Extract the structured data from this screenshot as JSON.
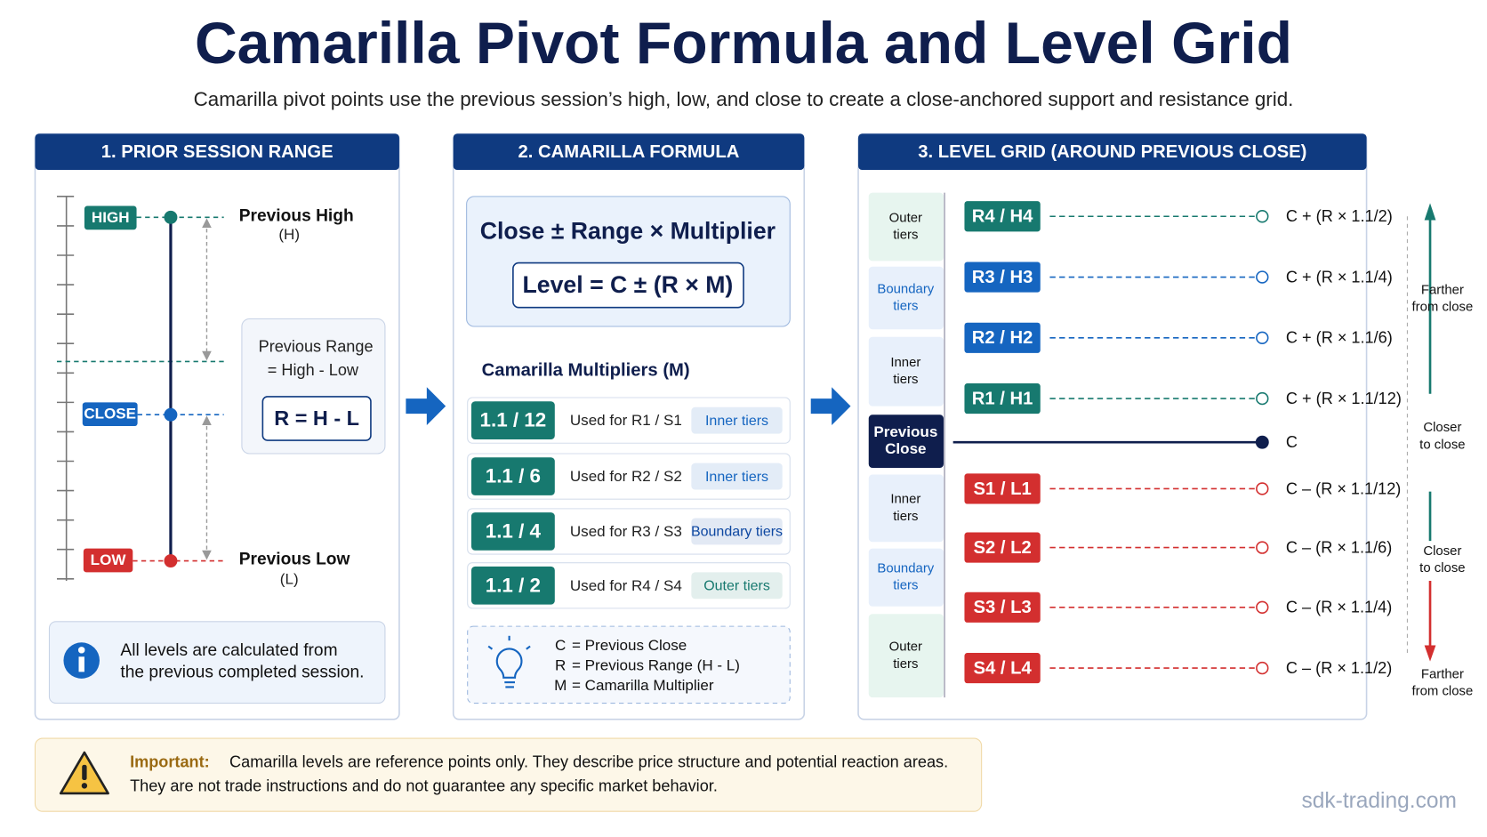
{
  "header": {
    "title": "Camarilla Pivot Formula and Level Grid",
    "subtitle": "Camarilla pivot points use the previous session’s high, low, and close to create a close-anchored support and resistance grid."
  },
  "panel1": {
    "title": "1. PRIOR SESSION RANGE",
    "high_tag": "HIGH",
    "close_tag": "CLOSE",
    "low_tag": "LOW",
    "high_label": "Previous High",
    "high_symbol": "(H)",
    "low_label": "Previous Low",
    "low_symbol": "(L)",
    "range_lines": [
      "Previous Range",
      "= High - Low"
    ],
    "range_formula": "R = H - L",
    "info": [
      "All levels are calculated from",
      "the previous completed session."
    ]
  },
  "panel2": {
    "title": "2. CAMARILLA FORMULA",
    "formula": "Close ± Range × Multiplier",
    "level_formula": "Level = C ± (R × M)",
    "multipliers_title": "Camarilla Multipliers (M)",
    "multipliers": [
      {
        "ratio": "1.1 / 12",
        "use": "Used for R1 / S1",
        "tier": "Inner tiers",
        "tier_color": "#1565c0"
      },
      {
        "ratio": "1.1 / 6",
        "use": "Used for R2 / S2",
        "tier": "Inner tiers",
        "tier_color": "#1565c0"
      },
      {
        "ratio": "1.1 / 4",
        "use": "Used for R3 / S3",
        "tier": "Boundary tiers",
        "tier_color": "#0d47a1"
      },
      {
        "ratio": "1.1 / 2",
        "use": "Used for R4 / S4",
        "tier": "Outer tiers",
        "tier_color": "#17796f"
      }
    ],
    "legend": [
      {
        "symbol": "C",
        "text": "= Previous Close"
      },
      {
        "symbol": "R",
        "text": "= Previous Range (H - L)"
      },
      {
        "symbol": "M",
        "text": "= Camarilla Multiplier"
      }
    ]
  },
  "panel3": {
    "title": "3. LEVEL GRID (AROUND PREVIOUS CLOSE)",
    "tiers": [
      {
        "lines": [
          "Outer",
          "tiers"
        ]
      },
      {
        "lines": [
          "Boundary",
          "tiers"
        ]
      },
      {
        "lines": [
          "Inner",
          "tiers"
        ]
      },
      {
        "lines": [
          "Previous",
          "Close"
        ]
      },
      {
        "lines": [
          "Inner",
          "tiers"
        ]
      },
      {
        "lines": [
          "Boundary",
          "tiers"
        ]
      },
      {
        "lines": [
          "Outer",
          "tiers"
        ]
      }
    ],
    "levels": [
      {
        "label": "R4 / H4",
        "formula": "C + (R × 1.1/2)",
        "color": "#17796f"
      },
      {
        "label": "R3 / H3",
        "formula": "C + (R × 1.1/4)",
        "color": "#1565c0"
      },
      {
        "label": "R2 / H2",
        "formula": "C + (R × 1.1/6)",
        "color": "#1565c0"
      },
      {
        "label": "R1 / H1",
        "formula": "C + (R × 1.1/12)",
        "color": "#17796f"
      },
      {
        "label": "S1 / L1",
        "formula": "C – (R × 1.1/12)",
        "color": "#d32f2f"
      },
      {
        "label": "S2 / L2",
        "formula": "C – (R × 1.1/6)",
        "color": "#d32f2f"
      },
      {
        "label": "S3 / L3",
        "formula": "C – (R × 1.1/4)",
        "color": "#d32f2f"
      },
      {
        "label": "S4 / L4",
        "formula": "C – (R × 1.1/2)",
        "color": "#d32f2f"
      }
    ],
    "close_formula": "C",
    "side_notes": [
      {
        "lines": [
          "Farther",
          "from close"
        ]
      },
      {
        "lines": [
          "Closer",
          "to close"
        ]
      },
      {
        "lines": [
          "Closer",
          "to close"
        ]
      },
      {
        "lines": [
          "Farther",
          "from close"
        ]
      }
    ]
  },
  "notice": {
    "label": "Important:",
    "lines": [
      "Camarilla levels are reference points only. They describe price structure and potential reaction areas.",
      "They are not trade instructions and do not guarantee any specific market behavior."
    ]
  },
  "footer": "sdk-trading.com"
}
